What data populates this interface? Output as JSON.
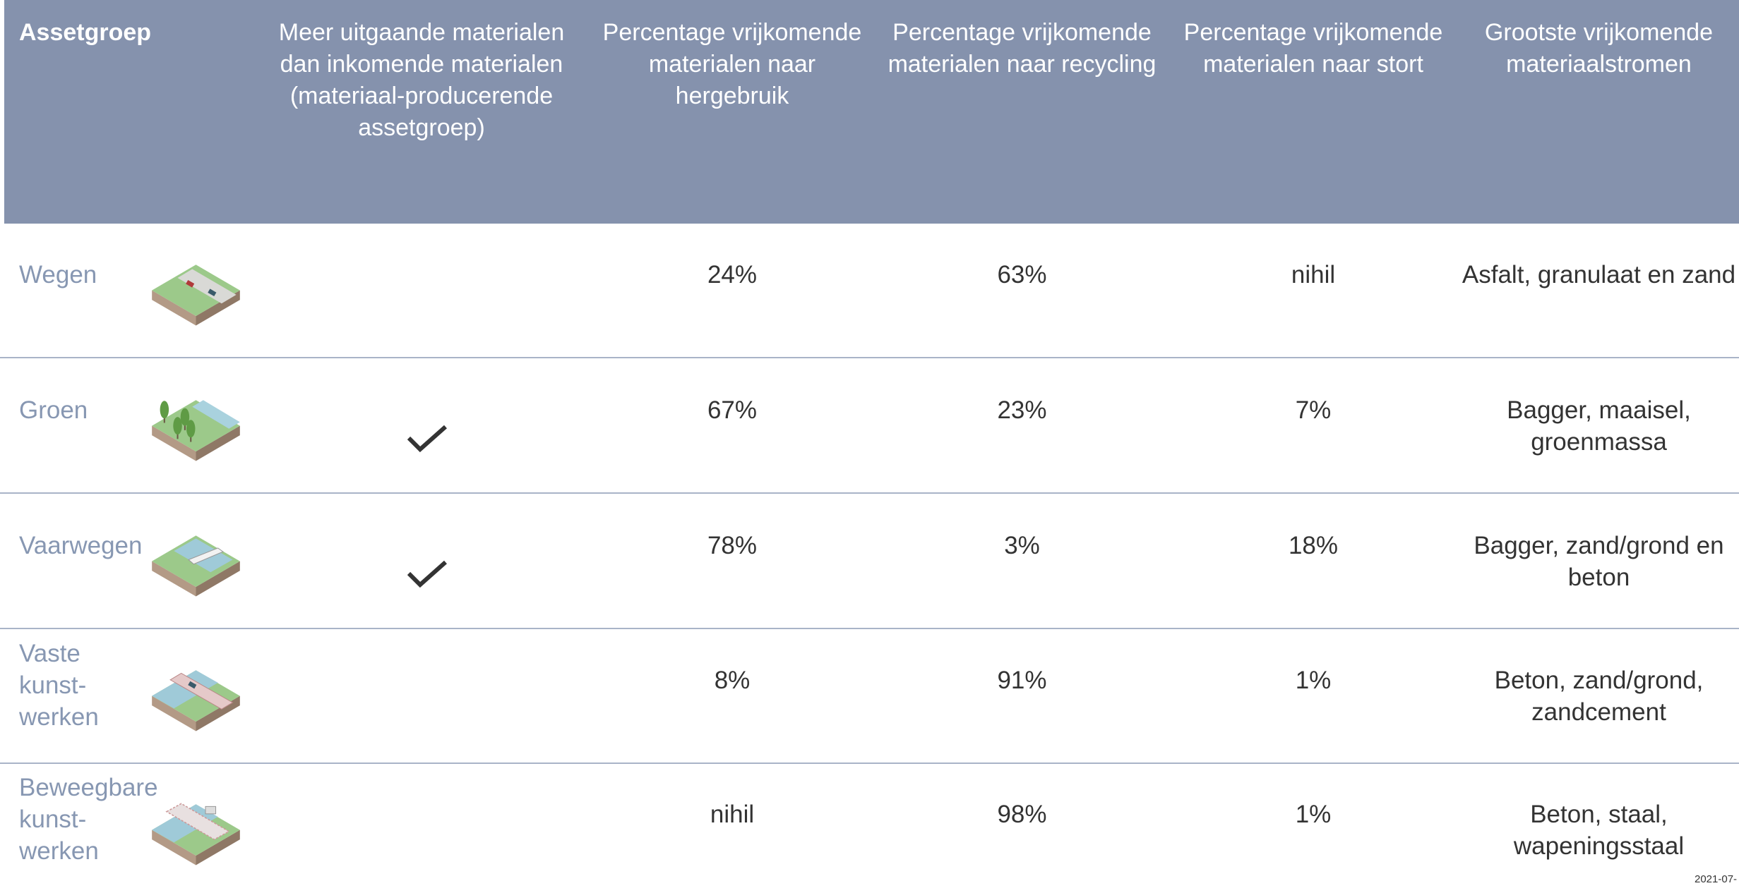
{
  "header": {
    "columns": [
      "Assetgroep",
      "Meer uitgaande materialen dan inkomende materialen (materiaal-producerende assetgroep)",
      "Percentage vrijkomende materialen naar hergebruik",
      "Percentage vrijkomende materialen naar recycling",
      "Percentage vrijkomende materialen naar stort",
      "Grootste vrijkomende materiaalstromen"
    ]
  },
  "rows": [
    {
      "name": "Wegen",
      "more_outgoing": false,
      "reuse": "24%",
      "recycling": "63%",
      "landfill": "nihil",
      "streams": "Asfalt, granulaat en zand"
    },
    {
      "name": "Groen",
      "more_outgoing": true,
      "reuse": "67%",
      "recycling": "23%",
      "landfill": "7%",
      "streams": "Bagger, maaisel, groenmassa"
    },
    {
      "name": "Vaarwegen",
      "more_outgoing": true,
      "reuse": "78%",
      "recycling": "3%",
      "landfill": "18%",
      "streams": "Bagger, zand/grond en beton"
    },
    {
      "name": "Vaste\nkunst-\nwerken",
      "more_outgoing": false,
      "reuse": "8%",
      "recycling": "91%",
      "landfill": "1%",
      "streams": "Beton, zand/grond, zandcement"
    },
    {
      "name": "Beweegbare\nkunst-\nwerken",
      "more_outgoing": false,
      "reuse": "nihil",
      "recycling": "98%",
      "landfill": "1%",
      "streams": "Beton, staal, wapeningsstaal"
    }
  ],
  "footer": "2021-07-"
}
